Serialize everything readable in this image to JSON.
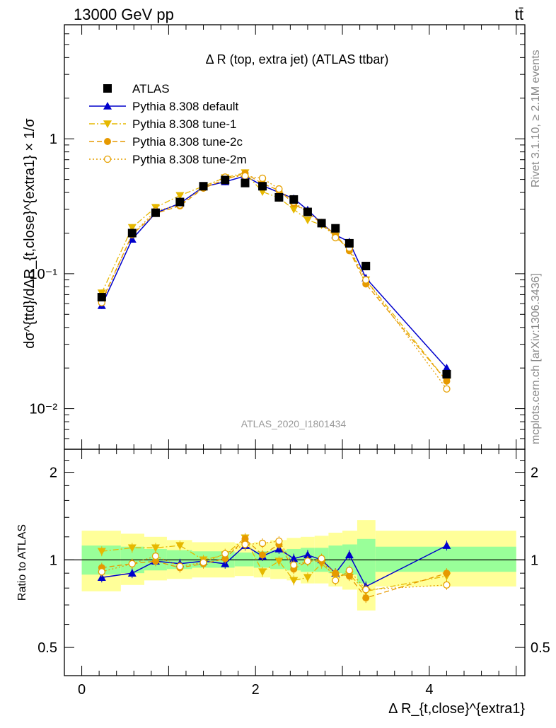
{
  "header": {
    "energy_label": "13000 GeV pp",
    "process_label": "tt̄"
  },
  "side_labels": {
    "rivet": "Rivet 3.1.10, ≥ 2.1M events",
    "mcplots": "mcplots.cern.ch [arXiv:1306.3436]"
  },
  "chart_data": [
    {
      "type": "scatter",
      "panel": "main",
      "title": "Δ R (top, extra jet) (ATLAS ttbar)",
      "ylabel": "dσ^{ttd}/dΔR_{t,close}^{extra1} × 1/σ",
      "analysis_tag": "ATLAS_2020_I1801434",
      "xlim": [
        -0.2,
        5.1
      ],
      "ylim": [
        0.005,
        7
      ],
      "y_scale": "log",
      "y_ticks": [
        {
          "v": 0.01,
          "label": "10⁻²"
        },
        {
          "v": 0.1,
          "label": "10⁻¹"
        },
        {
          "v": 1,
          "label": "1"
        }
      ],
      "x_ticks": [
        0,
        2,
        4
      ],
      "legend_position": "top-left",
      "x": [
        0.23,
        0.58,
        0.85,
        1.13,
        1.4,
        1.65,
        1.88,
        2.08,
        2.27,
        2.44,
        2.6,
        2.76,
        2.92,
        3.08,
        3.27,
        4.2
      ],
      "series": [
        {
          "name": "ATLAS",
          "color": "#000000",
          "marker": "square",
          "line": "none",
          "values": [
            0.067,
            0.2,
            0.283,
            0.34,
            0.445,
            0.495,
            0.47,
            0.445,
            0.368,
            0.355,
            0.287,
            0.237,
            0.217,
            0.168,
            0.114,
            0.018
          ]
        },
        {
          "name": "Pythia 8.308 default",
          "color": "#0000cc",
          "marker": "triangle-up",
          "line": "solid",
          "values": [
            0.058,
            0.18,
            0.282,
            0.332,
            0.44,
            0.48,
            0.53,
            0.45,
            0.4,
            0.36,
            0.297,
            0.237,
            0.194,
            0.172,
            0.093,
            0.02
          ]
        },
        {
          "name": "Pythia 8.308 tune-1",
          "color": "#e6b800",
          "marker": "triangle-down",
          "line": "dashdot",
          "values": [
            0.072,
            0.22,
            0.31,
            0.38,
            0.445,
            0.515,
            0.56,
            0.405,
            0.365,
            0.3,
            0.25,
            0.23,
            0.19,
            0.15,
            0.09,
            0.016
          ]
        },
        {
          "name": "Pythia 8.308 tune-2c",
          "color": "#e69900",
          "marker": "circle",
          "line": "dashed",
          "values": [
            0.063,
            0.195,
            0.28,
            0.318,
            0.43,
            0.5,
            0.555,
            0.465,
            0.415,
            0.33,
            0.285,
            0.235,
            0.195,
            0.148,
            0.084,
            0.016
          ]
        },
        {
          "name": "Pythia 8.308 tune-2m",
          "color": "#e6a000",
          "marker": "circle-open",
          "line": "dotted",
          "values": [
            0.061,
            0.195,
            0.292,
            0.323,
            0.437,
            0.52,
            0.53,
            0.51,
            0.425,
            0.34,
            0.285,
            0.24,
            0.185,
            0.155,
            0.09,
            0.014
          ]
        }
      ]
    },
    {
      "type": "scatter",
      "panel": "ratio",
      "ylabel": "Ratio to ATLAS",
      "xlabel": "Δ R_{t,close}^{extra1}",
      "xlim": [
        -0.2,
        5.1
      ],
      "ylim": [
        0.4,
        2.4
      ],
      "y_scale": "log",
      "y_ticks": [
        {
          "v": 0.5,
          "label": "0.5"
        },
        {
          "v": 1,
          "label": "1"
        },
        {
          "v": 2,
          "label": "2"
        }
      ],
      "x_ticks": [
        0,
        2,
        4
      ],
      "bin_edges": [
        0.0,
        0.45,
        0.72,
        0.98,
        1.27,
        1.53,
        1.76,
        1.98,
        2.17,
        2.36,
        2.52,
        2.68,
        2.84,
        3.0,
        3.17,
        3.38,
        5.0
      ],
      "band_inner": [
        [
          0.89,
          1.12
        ],
        [
          0.9,
          1.11
        ],
        [
          0.92,
          1.09
        ],
        [
          0.93,
          1.08
        ],
        [
          0.94,
          1.07
        ],
        [
          0.94,
          1.07
        ],
        [
          0.95,
          1.06
        ],
        [
          0.94,
          1.07
        ],
        [
          0.93,
          1.08
        ],
        [
          0.92,
          1.09
        ],
        [
          0.91,
          1.1
        ],
        [
          0.91,
          1.1
        ],
        [
          0.9,
          1.12
        ],
        [
          0.89,
          1.13
        ],
        [
          0.83,
          1.18
        ],
        [
          0.91,
          1.11
        ]
      ],
      "band_outer": [
        [
          0.78,
          1.26
        ],
        [
          0.82,
          1.23
        ],
        [
          0.85,
          1.2
        ],
        [
          0.86,
          1.17
        ],
        [
          0.87,
          1.15
        ],
        [
          0.87,
          1.15
        ],
        [
          0.88,
          1.14
        ],
        [
          0.87,
          1.15
        ],
        [
          0.86,
          1.17
        ],
        [
          0.85,
          1.19
        ],
        [
          0.83,
          1.2
        ],
        [
          0.83,
          1.21
        ],
        [
          0.81,
          1.24
        ],
        [
          0.79,
          1.26
        ],
        [
          0.67,
          1.37
        ],
        [
          0.81,
          1.26
        ]
      ],
      "x": [
        0.23,
        0.58,
        0.85,
        1.13,
        1.4,
        1.65,
        1.88,
        2.08,
        2.27,
        2.44,
        2.6,
        2.76,
        2.92,
        3.08,
        3.27,
        4.2
      ],
      "series": [
        {
          "name": "Pythia 8.308 default",
          "color": "#0000cc",
          "marker": "triangle-up",
          "line": "solid",
          "values": [
            0.87,
            0.9,
            0.99,
            0.97,
            0.99,
            0.97,
            1.12,
            1.03,
            1.09,
            1.01,
            1.04,
            1.0,
            0.9,
            1.04,
            0.81,
            1.12
          ]
        },
        {
          "name": "Pythia 8.308 tune-1",
          "color": "#e6b800",
          "marker": "triangle-down",
          "line": "dashdot",
          "values": [
            1.07,
            1.1,
            1.1,
            1.12,
            1.0,
            1.04,
            1.19,
            0.91,
            0.99,
            0.85,
            0.87,
            0.97,
            0.88,
            0.89,
            0.78,
            0.88
          ]
        },
        {
          "name": "Pythia 8.308 tune-2c",
          "color": "#e69900",
          "marker": "circle",
          "line": "dashed",
          "values": [
            0.94,
            0.97,
            0.99,
            0.94,
            0.97,
            1.01,
            1.18,
            1.04,
            1.13,
            0.93,
            0.99,
            0.99,
            0.9,
            0.88,
            0.74,
            0.9
          ]
        },
        {
          "name": "Pythia 8.308 tune-2m",
          "color": "#e6a000",
          "marker": "circle-open",
          "line": "dotted",
          "values": [
            0.91,
            0.97,
            1.03,
            0.95,
            0.98,
            1.05,
            1.13,
            1.14,
            1.16,
            0.96,
            0.99,
            1.01,
            0.85,
            0.92,
            0.79,
            0.82
          ]
        }
      ]
    }
  ]
}
